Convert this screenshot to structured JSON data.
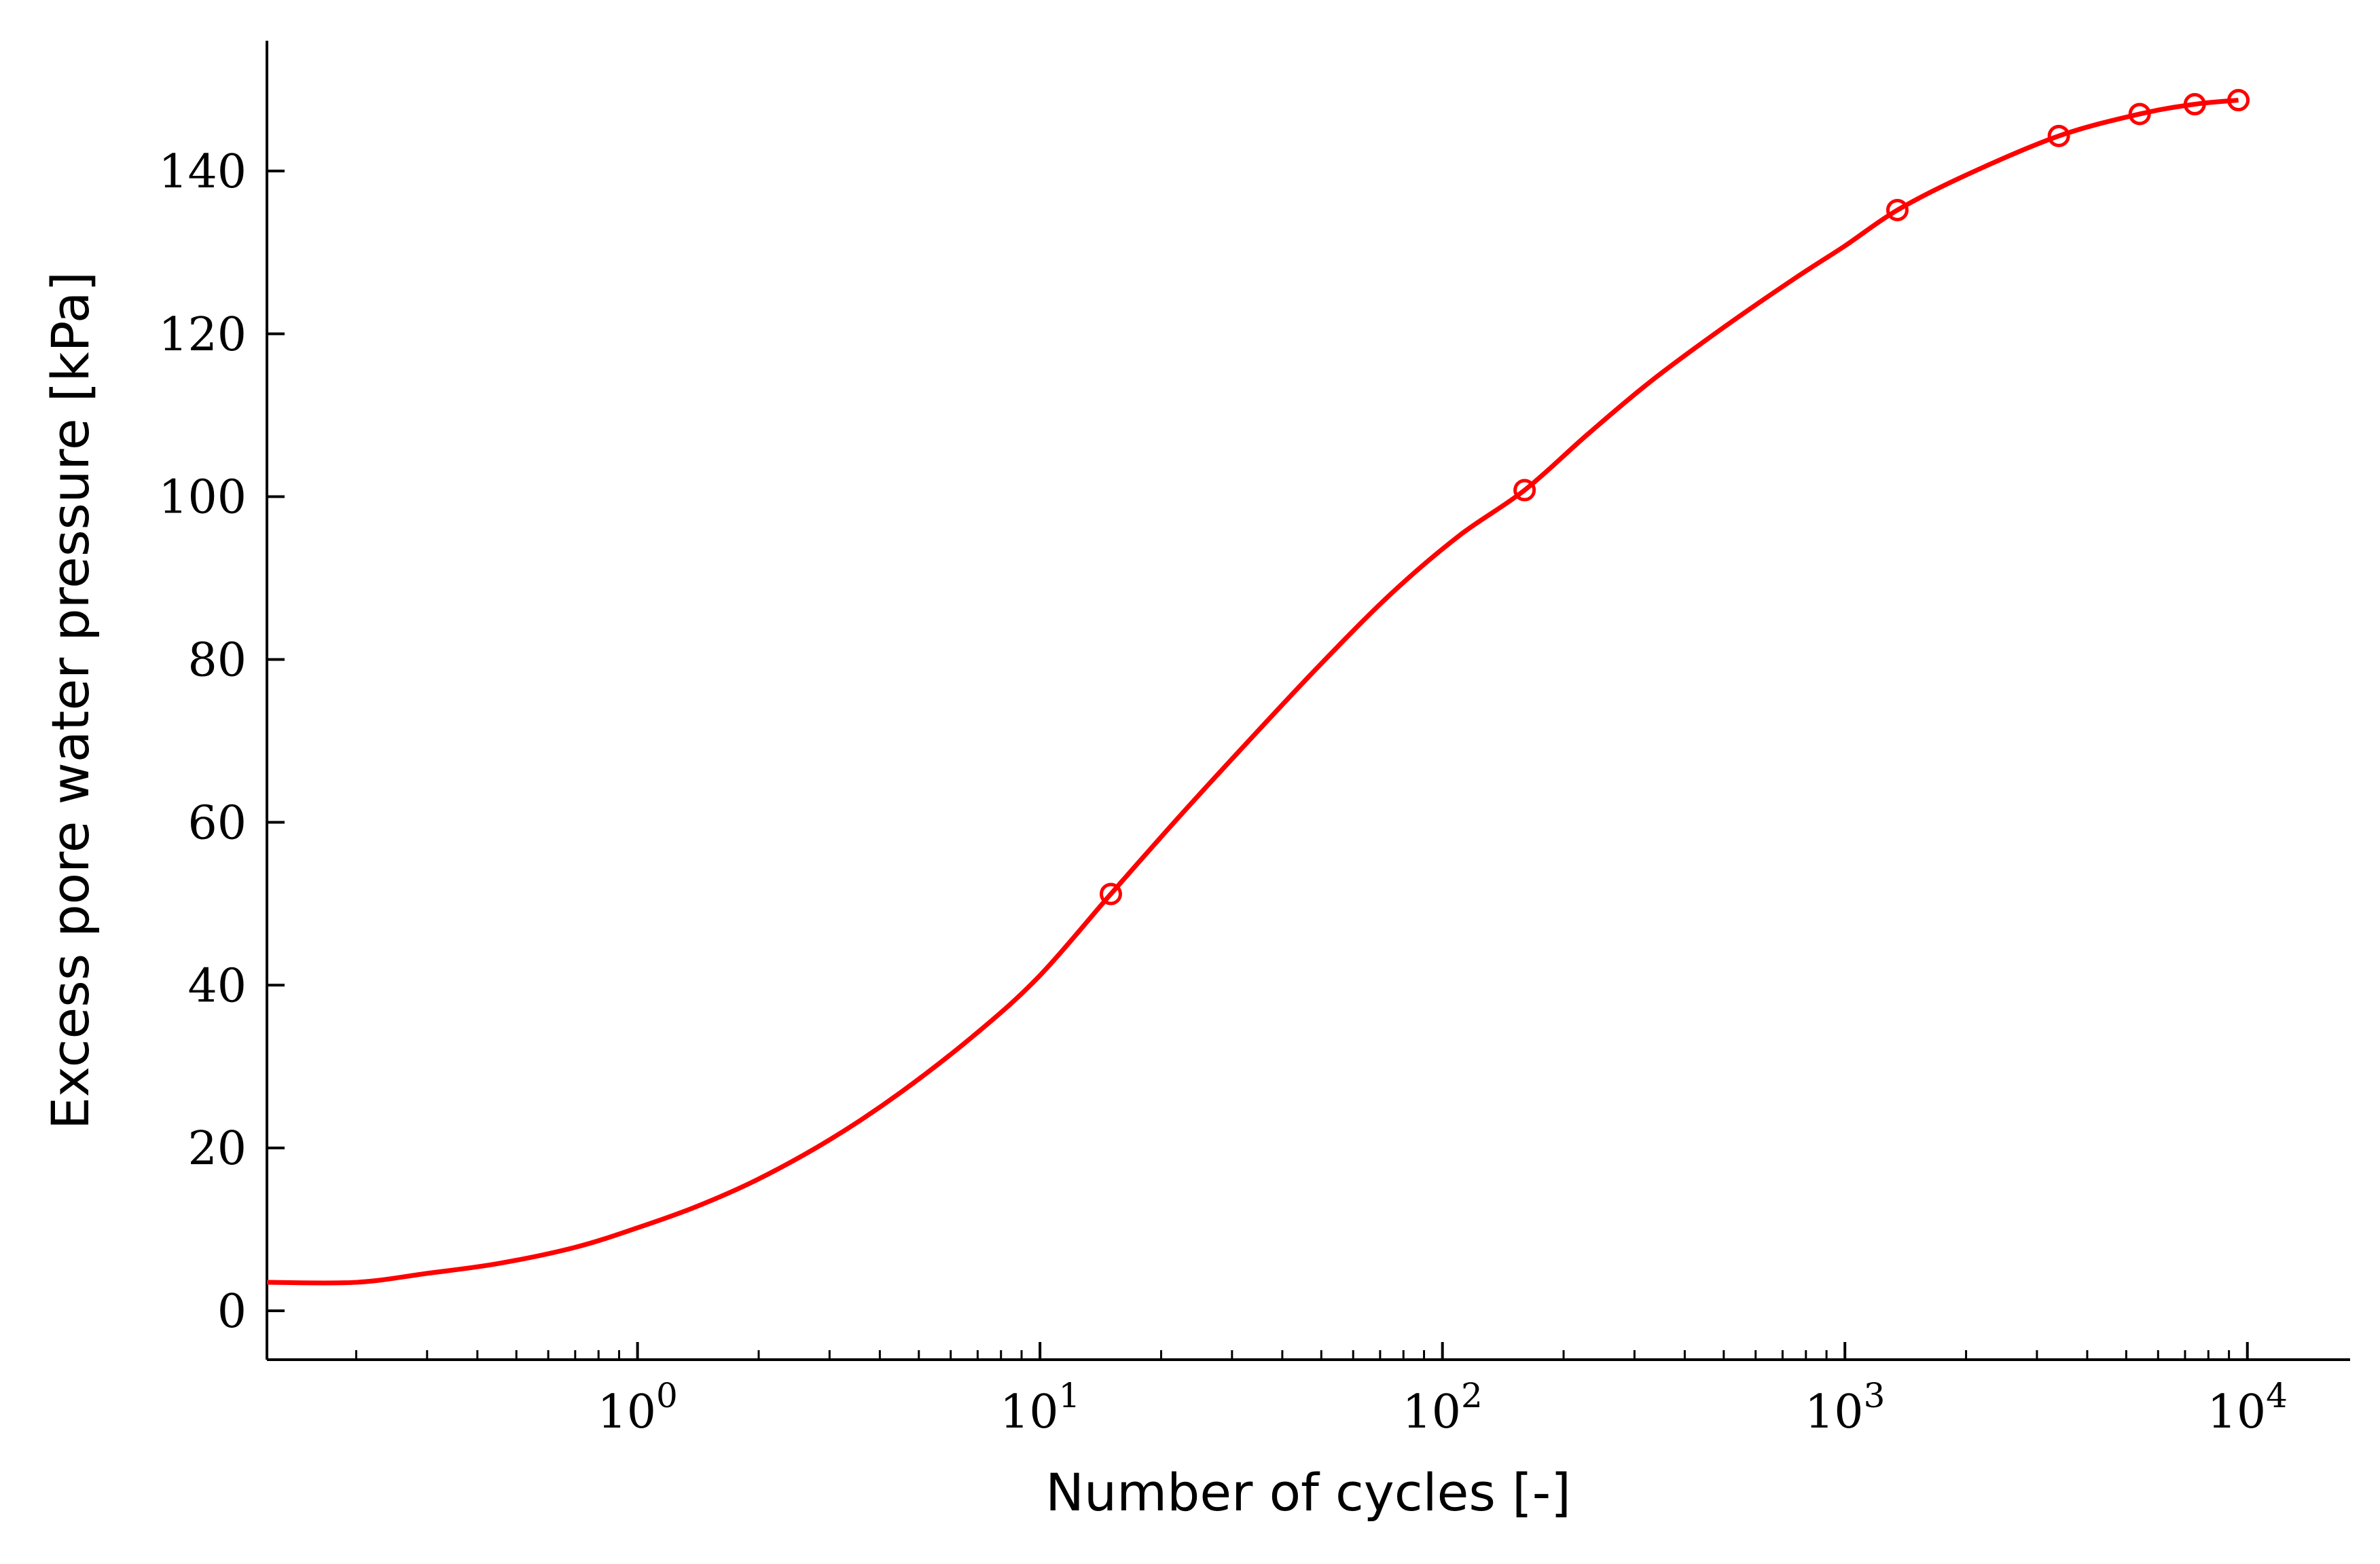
{
  "chart_data": {
    "type": "line",
    "title": "",
    "xlabel": "Number of cycles [-]",
    "ylabel": "Excess pore water pressure [kPa]",
    "x_scale": "log",
    "xlim": [
      0.12,
      18000
    ],
    "ylim": [
      -6,
      156
    ],
    "x_major_ticks": [
      {
        "value": 1,
        "label": "10",
        "exp": "0"
      },
      {
        "value": 10,
        "label": "10",
        "exp": "1"
      },
      {
        "value": 100,
        "label": "10",
        "exp": "2"
      },
      {
        "value": 1000,
        "label": "10",
        "exp": "3"
      },
      {
        "value": 10000,
        "label": "10",
        "exp": "4"
      }
    ],
    "y_ticks": [
      0,
      20,
      40,
      60,
      80,
      100,
      120,
      140
    ],
    "grid": false,
    "legend": "none",
    "line_color": "#ff0000",
    "series": [
      {
        "line_x": [
          0.12,
          0.2,
          0.3,
          0.45,
          0.7,
          1.0,
          1.4,
          2.0,
          3.0,
          4.5,
          7.0,
          10,
          15,
          22,
          33,
          50,
          75,
          110,
          160,
          230,
          330,
          500,
          750,
          1000,
          1350,
          2000,
          3400,
          5400,
          7400,
          9500
        ],
        "line_y": [
          3.5,
          3.5,
          4.6,
          5.8,
          7.8,
          10.2,
          12.8,
          16.2,
          21.0,
          26.8,
          34.2,
          41.2,
          51.2,
          60.5,
          70.0,
          79.5,
          88.2,
          95.2,
          100.8,
          107.7,
          114.2,
          120.8,
          126.8,
          130.8,
          135.2,
          139.5,
          144.3,
          147.0,
          148.2,
          148.7
        ],
        "markers_x": [
          15,
          160,
          1350,
          3400,
          5400,
          7400,
          9500
        ],
        "markers_y": [
          51.2,
          100.8,
          135.2,
          144.3,
          147.0,
          148.2,
          148.7
        ]
      }
    ]
  }
}
